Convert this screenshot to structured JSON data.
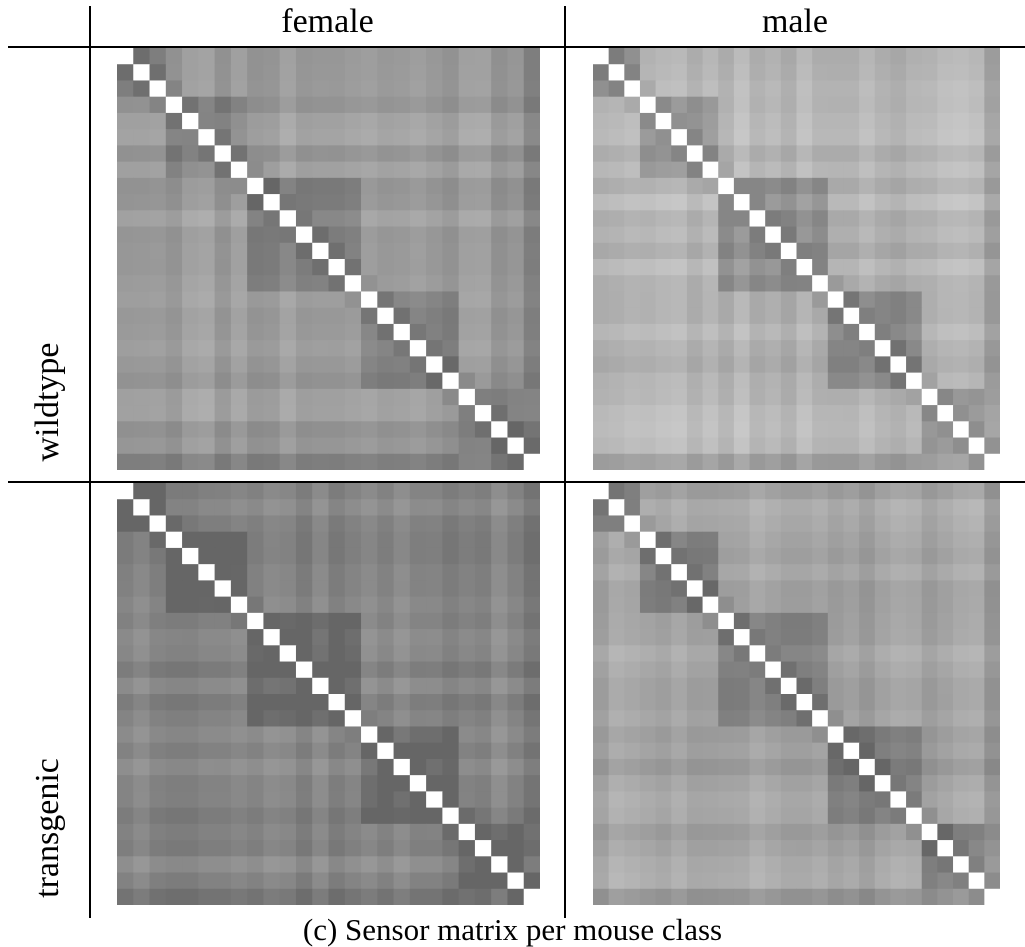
{
  "column_headers": [
    "female",
    "male"
  ],
  "row_headers": [
    "wildtype",
    "transgenic"
  ],
  "caption": "(c)  Sensor matrix per mouse class",
  "chart_data": [
    {
      "type": "heatmap",
      "row": "wildtype",
      "column": "female",
      "size": 26,
      "diagonal": "white",
      "colormap": "grayscale",
      "seed": 11,
      "base": 0.25,
      "block_strength": 0.1
    },
    {
      "type": "heatmap",
      "row": "wildtype",
      "column": "male",
      "size": 26,
      "diagonal": "white",
      "colormap": "grayscale",
      "seed": 23,
      "base": 0.18,
      "block_strength": 0.14
    },
    {
      "type": "heatmap",
      "row": "transgenic",
      "column": "female",
      "size": 26,
      "diagonal": "white",
      "colormap": "grayscale",
      "seed": 37,
      "base": 0.33,
      "block_strength": 0.12
    },
    {
      "type": "heatmap",
      "row": "transgenic",
      "column": "male",
      "size": 26,
      "diagonal": "white",
      "colormap": "grayscale",
      "seed": 51,
      "base": 0.27,
      "block_strength": 0.14
    }
  ]
}
